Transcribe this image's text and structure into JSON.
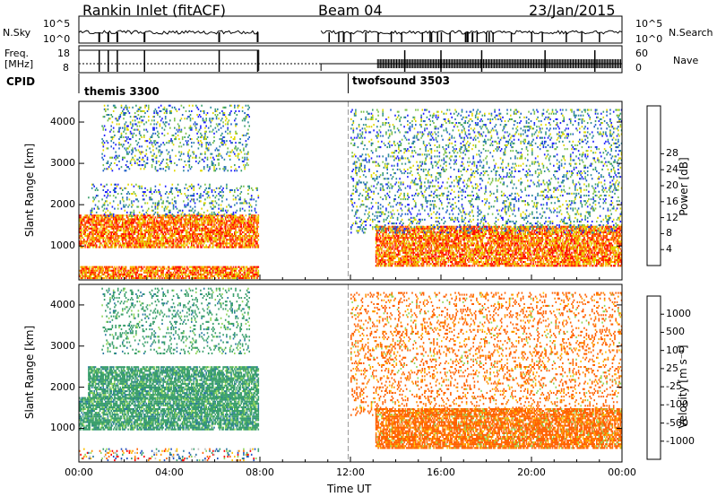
{
  "header": {
    "site": "Rankin Inlet (fitACF)",
    "beam": "Beam 04",
    "date": "23/Jan/2015"
  },
  "strips": {
    "nsky_label": "N.Sky",
    "nsky_ticks": [
      "10^5",
      "10^0"
    ],
    "nsearch_label": "N.Search",
    "nsearch_ticks": [
      "10^5",
      "10^0"
    ],
    "freq_label_1": "Freq.",
    "freq_label_2": "[MHz]",
    "freq_ticks": [
      "18",
      "8"
    ],
    "nave_label": "Nave",
    "nave_ticks": [
      "60",
      "0"
    ],
    "cpid_label": "CPID",
    "cpid_segments": [
      {
        "name": "themis 3300",
        "start_hour": 0,
        "end_hour": 11.9
      },
      {
        "name": "twofsound 3503",
        "start_hour": 11.9,
        "end_hour": 24
      }
    ]
  },
  "chart_data": [
    {
      "type": "heatmap",
      "title": "",
      "xlabel": "Time UT",
      "ylabel": "Slant Range [km]",
      "x_ticks": [
        "00:00",
        "04:00",
        "08:00",
        "12:00",
        "16:00",
        "20:00",
        "00:00"
      ],
      "xlim_hours": [
        0,
        24
      ],
      "y_ticks": [
        "1000",
        "2000",
        "3000",
        "4000"
      ],
      "ylim": [
        180,
        4500
      ],
      "colorbar": {
        "label": "Power [dB]",
        "ticks": [
          "4",
          "8",
          "12",
          "16",
          "20",
          "24",
          "28"
        ],
        "range": [
          0,
          30
        ],
        "colors": [
          "#2020ff",
          "#2060c8",
          "#2f8a9a",
          "#3a9f6c",
          "#7cc24a",
          "#e0d800",
          "#ffb000",
          "#ff7000",
          "#ff3000",
          "#ff0000"
        ]
      },
      "scatter_regions": [
        {
          "t": [
            0.0,
            7.9
          ],
          "r": [
            950,
            1750
          ],
          "class": "strong"
        },
        {
          "t": [
            0.0,
            7.9
          ],
          "r": [
            200,
            500
          ],
          "class": "strong"
        },
        {
          "t": [
            0.4,
            7.9
          ],
          "r": [
            1700,
            2500
          ],
          "class": "weak"
        },
        {
          "t": [
            1.0,
            7.5
          ],
          "r": [
            2800,
            4400
          ],
          "class": "weak"
        },
        {
          "t": [
            13.1,
            24
          ],
          "r": [
            500,
            1450
          ],
          "class": "strong"
        },
        {
          "t": [
            12.0,
            24
          ],
          "r": [
            1300,
            4300
          ],
          "class": "weak"
        }
      ],
      "missing_data_hours": [
        8.0,
        10.6
      ]
    },
    {
      "type": "heatmap",
      "title": "",
      "xlabel": "Time UT",
      "ylabel": "Slant Range [km]",
      "x_ticks": [
        "00:00",
        "04:00",
        "08:00",
        "12:00",
        "16:00",
        "20:00",
        "00:00"
      ],
      "xlim_hours": [
        0,
        24
      ],
      "y_ticks": [
        "1000",
        "2000",
        "3000",
        "4000"
      ],
      "ylim": [
        180,
        4500
      ],
      "colorbar": {
        "label": "Velocity [m s^-1]",
        "ticks": [
          "1000",
          "500",
          "100",
          "25",
          "-25",
          "-100",
          "-500",
          "-1000"
        ],
        "range": [
          -1200,
          1200
        ],
        "colors": [
          "#ff0000",
          "#ff6000",
          "#ff9000",
          "#ffc000",
          "#c0c0c0",
          "#8fd65a",
          "#3a9f6c",
          "#2a7aa0",
          "#2050c0"
        ]
      },
      "scatter_regions": [
        {
          "t": [
            0.0,
            7.9
          ],
          "r": [
            950,
            1750
          ],
          "class": "positive"
        },
        {
          "t": [
            0.0,
            7.9
          ],
          "r": [
            200,
            500
          ],
          "class": "mixed"
        },
        {
          "t": [
            0.4,
            7.9
          ],
          "r": [
            1700,
            2500
          ],
          "class": "positive"
        },
        {
          "t": [
            1.0,
            7.5
          ],
          "r": [
            2800,
            4400
          ],
          "class": "positive"
        },
        {
          "t": [
            13.1,
            24
          ],
          "r": [
            500,
            1450
          ],
          "class": "negative"
        },
        {
          "t": [
            12.0,
            24
          ],
          "r": [
            1300,
            4300
          ],
          "class": "negative"
        }
      ],
      "missing_data_hours": [
        8.0,
        10.6
      ]
    }
  ],
  "xaxis_label": "Time UT",
  "power_cb_title": "Power [dB]",
  "velocity_cb_title": "Velocity [m s⁻¹]"
}
